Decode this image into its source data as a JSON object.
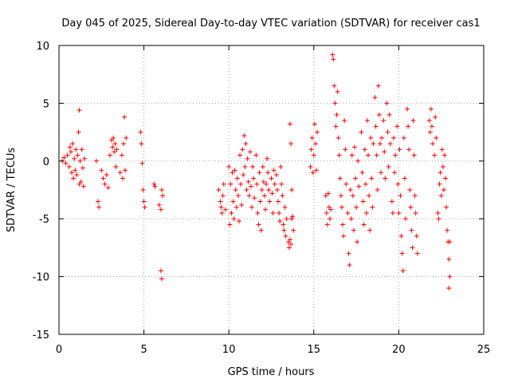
{
  "chart_data": {
    "type": "scatter",
    "title": "Day 045 of 2025, Sidereal Day-to-day VTEC variation (SDTVAR) for receiver cas1",
    "xlabel": "GPS time / hours",
    "ylabel": "SDTVAR / TECUs",
    "xlim": [
      0,
      25
    ],
    "ylim": [
      -15,
      10
    ],
    "xticks": [
      "0",
      "5",
      "10",
      "15",
      "20",
      "25"
    ],
    "yticks": [
      "10",
      "5",
      "0",
      "-5",
      "-10",
      "-15"
    ],
    "grid": true,
    "marker": "+",
    "color": "#ff0000",
    "series": [
      {
        "name": "SDTVAR",
        "points": [
          [
            0.2,
            0.0
          ],
          [
            0.3,
            0.3
          ],
          [
            0.4,
            -0.2
          ],
          [
            0.5,
            0.5
          ],
          [
            0.6,
            -0.5
          ],
          [
            0.65,
            1.2
          ],
          [
            0.7,
            0.8
          ],
          [
            0.75,
            -1.0
          ],
          [
            0.8,
            1.5
          ],
          [
            0.85,
            -1.5
          ],
          [
            0.9,
            0.2
          ],
          [
            0.95,
            -0.8
          ],
          [
            1.0,
            1.0
          ],
          [
            1.05,
            -1.2
          ],
          [
            1.1,
            0.5
          ],
          [
            1.15,
            2.5
          ],
          [
            1.2,
            -2.0
          ],
          [
            1.2,
            4.4
          ],
          [
            1.25,
            0.0
          ],
          [
            1.3,
            -1.8
          ],
          [
            1.35,
            1.0
          ],
          [
            1.4,
            -0.6
          ],
          [
            1.45,
            -2.2
          ],
          [
            1.5,
            0.2
          ],
          [
            2.2,
            0.0
          ],
          [
            2.3,
            -3.5
          ],
          [
            2.35,
            -4.0
          ],
          [
            2.5,
            -0.8
          ],
          [
            2.6,
            -1.5
          ],
          [
            2.7,
            -2.0
          ],
          [
            2.8,
            -1.2
          ],
          [
            2.9,
            -2.3
          ],
          [
            3.0,
            0.5
          ],
          [
            3.1,
            1.8
          ],
          [
            3.15,
            1.2
          ],
          [
            3.2,
            2.0
          ],
          [
            3.25,
            0.8
          ],
          [
            3.3,
            1.5
          ],
          [
            3.35,
            -0.5
          ],
          [
            3.4,
            1.0
          ],
          [
            3.6,
            -1.0
          ],
          [
            3.7,
            0.5
          ],
          [
            3.75,
            -1.5
          ],
          [
            3.8,
            1.5
          ],
          [
            3.85,
            3.8
          ],
          [
            3.9,
            -0.8
          ],
          [
            3.95,
            2.0
          ],
          [
            4.8,
            2.5
          ],
          [
            4.85,
            1.5
          ],
          [
            4.9,
            -0.2
          ],
          [
            4.95,
            -2.5
          ],
          [
            5.0,
            -3.5
          ],
          [
            5.05,
            -4.0
          ],
          [
            5.6,
            -2.0
          ],
          [
            5.65,
            -2.2
          ],
          [
            5.9,
            -3.8
          ],
          [
            6.0,
            -4.2
          ],
          [
            6.05,
            -2.5
          ],
          [
            6.1,
            -3.0
          ],
          [
            6.0,
            -9.5
          ],
          [
            6.05,
            -10.2
          ],
          [
            9.4,
            -2.5
          ],
          [
            9.5,
            -3.5
          ],
          [
            9.55,
            -4.0
          ],
          [
            9.6,
            -4.5
          ],
          [
            9.65,
            -3.0
          ],
          [
            9.7,
            -2.0
          ],
          [
            9.8,
            -4.2
          ],
          [
            10.0,
            -0.5
          ],
          [
            10.05,
            -5.5
          ],
          [
            10.1,
            -2.0
          ],
          [
            10.15,
            -4.5
          ],
          [
            10.2,
            -1.0
          ],
          [
            10.25,
            -3.5
          ],
          [
            10.3,
            -5.0
          ],
          [
            10.35,
            -0.8
          ],
          [
            10.4,
            -2.5
          ],
          [
            10.45,
            -4.0
          ],
          [
            10.5,
            -1.5
          ],
          [
            10.55,
            -3.0
          ],
          [
            10.6,
            -5.2
          ],
          [
            10.65,
            0.5
          ],
          [
            10.7,
            -2.0
          ],
          [
            10.75,
            -3.8
          ],
          [
            10.8,
            1.0
          ],
          [
            10.85,
            -1.2
          ],
          [
            10.9,
            2.2
          ],
          [
            10.95,
            -0.5
          ],
          [
            11.0,
            1.5
          ],
          [
            11.05,
            -2.5
          ],
          [
            11.1,
            0.2
          ],
          [
            11.15,
            -1.8
          ],
          [
            11.2,
            -3.0
          ],
          [
            11.25,
            0.8
          ],
          [
            11.3,
            -2.2
          ],
          [
            11.35,
            -4.0
          ],
          [
            11.4,
            -0.5
          ],
          [
            11.45,
            -1.5
          ],
          [
            11.5,
            -3.2
          ],
          [
            11.6,
            0.5
          ],
          [
            11.65,
            -2.0
          ],
          [
            11.7,
            -4.5
          ],
          [
            11.75,
            -5.5
          ],
          [
            11.8,
            -1.0
          ],
          [
            11.85,
            -3.5
          ],
          [
            11.9,
            -6.0
          ],
          [
            11.95,
            -2.5
          ],
          [
            12.0,
            -0.5
          ],
          [
            12.05,
            -1.8
          ],
          [
            12.1,
            -3.0
          ],
          [
            12.15,
            -4.2
          ],
          [
            12.2,
            -2.0
          ],
          [
            12.25,
            0.2
          ],
          [
            12.3,
            -1.0
          ],
          [
            12.35,
            -2.5
          ],
          [
            12.4,
            -3.5
          ],
          [
            12.5,
            -1.5
          ],
          [
            12.55,
            -2.8
          ],
          [
            12.6,
            -4.5
          ],
          [
            12.65,
            -0.8
          ],
          [
            12.7,
            -2.0
          ],
          [
            12.8,
            -1.2
          ],
          [
            12.85,
            -2.5
          ],
          [
            12.9,
            -3.5
          ],
          [
            12.95,
            -4.5
          ],
          [
            13.0,
            -5.2
          ],
          [
            13.05,
            -0.5
          ],
          [
            13.1,
            -2.0
          ],
          [
            13.15,
            -3.0
          ],
          [
            13.2,
            -5.5
          ],
          [
            13.25,
            -6.0
          ],
          [
            13.3,
            -4.0
          ],
          [
            13.35,
            -6.5
          ],
          [
            13.4,
            -5.0
          ],
          [
            13.5,
            -7.0
          ],
          [
            13.55,
            -7.5
          ],
          [
            13.6,
            -6.8
          ],
          [
            13.65,
            -7.2
          ],
          [
            13.7,
            -5.0
          ],
          [
            13.75,
            -4.8
          ],
          [
            13.8,
            -6.0
          ],
          [
            13.6,
            3.2
          ],
          [
            13.65,
            1.5
          ],
          [
            13.7,
            -2.5
          ],
          [
            14.8,
            -0.5
          ],
          [
            14.85,
            1.0
          ],
          [
            14.9,
            2.0
          ],
          [
            14.95,
            -1.0
          ],
          [
            15.0,
            0.5
          ],
          [
            15.05,
            3.2
          ],
          [
            15.1,
            1.5
          ],
          [
            15.15,
            -0.8
          ],
          [
            15.2,
            2.5
          ],
          [
            15.7,
            -3.0
          ],
          [
            15.75,
            -4.5
          ],
          [
            15.8,
            -5.5
          ],
          [
            15.85,
            -2.8
          ],
          [
            15.9,
            -4.0
          ],
          [
            15.95,
            -5.0
          ],
          [
            16.0,
            -4.2
          ],
          [
            16.1,
            9.2
          ],
          [
            16.15,
            8.8
          ],
          [
            16.2,
            6.5
          ],
          [
            16.25,
            5.0
          ],
          [
            16.3,
            3.0
          ],
          [
            16.35,
            4.0
          ],
          [
            16.4,
            6.0
          ],
          [
            16.45,
            2.0
          ],
          [
            16.5,
            0.5
          ],
          [
            16.55,
            -1.5
          ],
          [
            16.6,
            -3.0
          ],
          [
            16.65,
            -4.0
          ],
          [
            16.7,
            -5.5
          ],
          [
            16.75,
            -6.5
          ],
          [
            16.8,
            3.5
          ],
          [
            16.85,
            1.0
          ],
          [
            16.9,
            -2.0
          ],
          [
            17.0,
            -4.5
          ],
          [
            17.05,
            -8.0
          ],
          [
            17.1,
            -9.0
          ],
          [
            17.15,
            -2.5
          ],
          [
            17.2,
            -5.0
          ],
          [
            17.25,
            0.5
          ],
          [
            17.3,
            -3.0
          ],
          [
            17.35,
            -6.0
          ],
          [
            17.4,
            1.2
          ],
          [
            17.45,
            -1.5
          ],
          [
            17.5,
            -4.0
          ],
          [
            17.55,
            -7.0
          ],
          [
            17.6,
            0.0
          ],
          [
            17.65,
            -2.2
          ],
          [
            17.8,
            2.5
          ],
          [
            17.85,
            -1.0
          ],
          [
            17.9,
            -3.5
          ],
          [
            17.95,
            -5.5
          ],
          [
            18.0,
            1.0
          ],
          [
            18.05,
            -2.0
          ],
          [
            18.1,
            -4.5
          ],
          [
            18.15,
            3.5
          ],
          [
            18.2,
            0.5
          ],
          [
            18.25,
            -3.0
          ],
          [
            18.3,
            -6.0
          ],
          [
            18.35,
            2.0
          ],
          [
            18.4,
            -1.5
          ],
          [
            18.45,
            -4.0
          ],
          [
            18.5,
            1.5
          ],
          [
            18.6,
            5.5
          ],
          [
            18.65,
            3.0
          ],
          [
            18.7,
            0.5
          ],
          [
            18.75,
            -2.5
          ],
          [
            18.8,
            6.5
          ],
          [
            18.85,
            4.0
          ],
          [
            18.9,
            1.5
          ],
          [
            18.95,
            -1.0
          ],
          [
            19.0,
            2.0
          ],
          [
            19.1,
            3.5
          ],
          [
            19.15,
            0.8
          ],
          [
            19.2,
            -1.5
          ],
          [
            19.3,
            5.0
          ],
          [
            19.35,
            2.5
          ],
          [
            19.4,
            -0.5
          ],
          [
            19.45,
            4.0
          ],
          [
            19.5,
            1.5
          ],
          [
            19.6,
            -3.5
          ],
          [
            19.65,
            -4.5
          ],
          [
            19.7,
            2.0
          ],
          [
            19.75,
            -1.0
          ],
          [
            19.8,
            0.5
          ],
          [
            19.9,
            3.0
          ],
          [
            19.95,
            -2.0
          ],
          [
            20.0,
            -4.5
          ],
          [
            20.05,
            1.0
          ],
          [
            20.1,
            -3.0
          ],
          [
            20.15,
            -6.5
          ],
          [
            20.2,
            -8.0
          ],
          [
            20.25,
            -9.5
          ],
          [
            20.3,
            2.0
          ],
          [
            20.35,
            -1.5
          ],
          [
            20.4,
            -5.0
          ],
          [
            20.5,
            4.5
          ],
          [
            20.55,
            3.0
          ],
          [
            20.6,
            1.0
          ],
          [
            20.65,
            -2.5
          ],
          [
            20.7,
            -4.0
          ],
          [
            20.75,
            -6.0
          ],
          [
            20.8,
            -7.5
          ],
          [
            20.85,
            3.5
          ],
          [
            20.9,
            0.5
          ],
          [
            20.95,
            -3.0
          ],
          [
            21.0,
            -4.5
          ],
          [
            21.05,
            -6.5
          ],
          [
            21.1,
            -8.0
          ],
          [
            21.8,
            3.5
          ],
          [
            21.85,
            2.5
          ],
          [
            21.9,
            4.5
          ],
          [
            21.95,
            3.0
          ],
          [
            22.0,
            1.5
          ],
          [
            22.1,
            0.5
          ],
          [
            22.15,
            3.8
          ],
          [
            22.2,
            2.0
          ],
          [
            22.3,
            -4.5
          ],
          [
            22.35,
            -5.0
          ],
          [
            22.4,
            -2.0
          ],
          [
            22.45,
            -1.0
          ],
          [
            22.5,
            -3.0
          ],
          [
            22.55,
            1.0
          ],
          [
            22.6,
            -0.5
          ],
          [
            22.65,
            -2.5
          ],
          [
            22.7,
            0.5
          ],
          [
            22.75,
            -1.5
          ],
          [
            22.8,
            -4.0
          ],
          [
            22.85,
            -6.0
          ],
          [
            22.9,
            -7.0
          ],
          [
            22.95,
            -8.5
          ],
          [
            23.0,
            -10.0
          ],
          [
            22.95,
            -11.0
          ],
          [
            23.0,
            -7.0
          ]
        ]
      }
    ]
  }
}
